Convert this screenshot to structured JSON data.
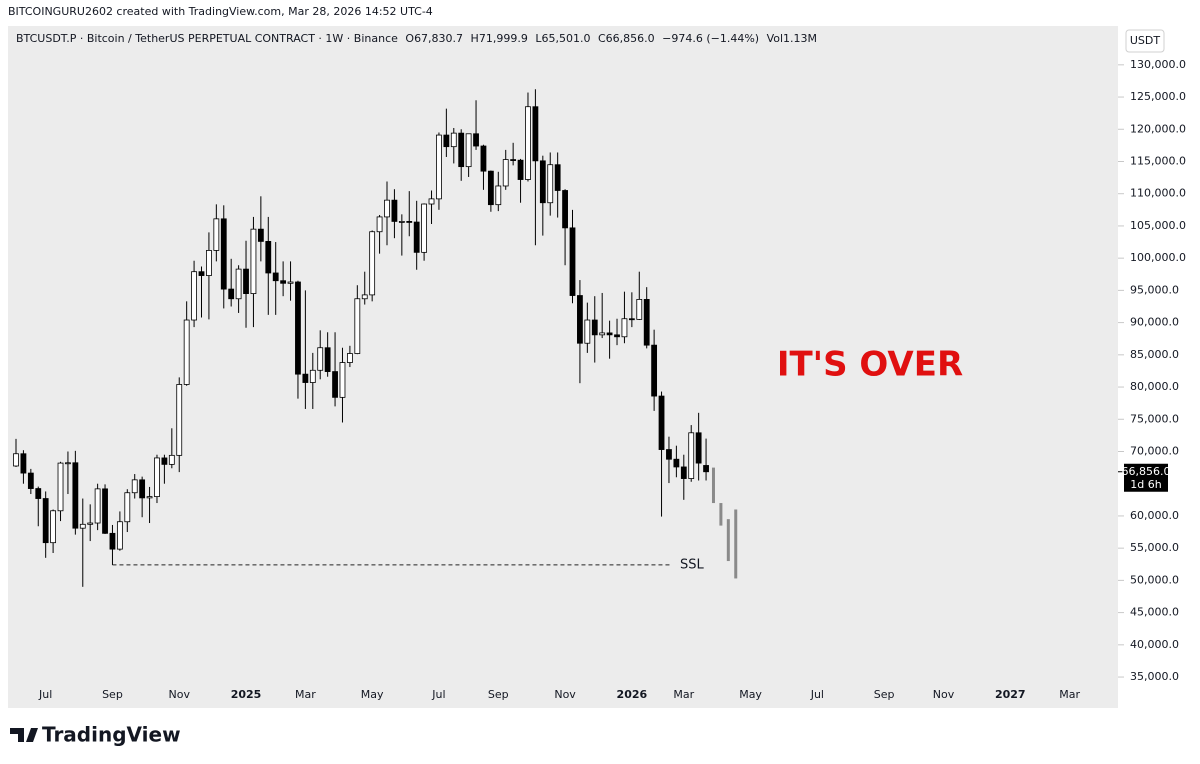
{
  "header": {
    "credit": "BITCOINGURU2602 created with TradingView.com, Mar 28, 2026 14:52 UTC-4",
    "symbol": "BTCUSDT.P · Bitcoin / TetherUS PERPETUAL CONTRACT · 1W · Binance",
    "ohlc": [
      {
        "key": "O",
        "value": "67,830.7"
      },
      {
        "key": "H",
        "value": "71,999.9"
      },
      {
        "key": "L",
        "value": "65,501.0"
      },
      {
        "key": "C",
        "value": "66,856.0"
      }
    ],
    "change": "−974.6 (−1.44%)",
    "volume": "Vol1.13M",
    "currency": "USDT"
  },
  "footer": {
    "logo": "TradingView"
  },
  "chart_data": {
    "type": "candlestick",
    "categories": [
      null,
      null,
      null,
      null,
      "Jul",
      null,
      null,
      null,
      null,
      null,
      null,
      null,
      null,
      "Sep",
      null,
      null,
      null,
      null,
      null,
      null,
      null,
      null,
      "Nov",
      null,
      null,
      null,
      null,
      null,
      null,
      null,
      null,
      "2025",
      null,
      null,
      null,
      null,
      null,
      null,
      null,
      "Mar",
      null,
      null,
      null,
      null,
      null,
      null,
      null,
      null,
      "May",
      null,
      null,
      null,
      null,
      null,
      null,
      null,
      null,
      "Jul",
      null,
      null,
      null,
      null,
      null,
      null,
      null,
      "Sep",
      null,
      null,
      null,
      null,
      null,
      null,
      null,
      null,
      "Nov",
      null,
      null,
      null,
      null,
      null,
      null,
      null,
      null,
      "2026",
      null,
      null,
      null,
      null,
      null,
      null,
      "Mar",
      null,
      null,
      null,
      null,
      null,
      null,
      null,
      null,
      "May",
      null,
      null,
      null,
      null,
      null,
      null,
      null,
      null,
      "Jul",
      null,
      null,
      null,
      null,
      null,
      null,
      null,
      null,
      "Sep",
      null,
      null,
      null,
      null,
      null,
      null,
      null,
      "Nov",
      null,
      null,
      null,
      null,
      null,
      null,
      null,
      null,
      "2027",
      null,
      null,
      null,
      null,
      null,
      null,
      null,
      "Mar"
    ],
    "open": [
      67750,
      69650,
      66650,
      64250,
      62700,
      55850,
      60800,
      68200,
      68250,
      58100,
      58700,
      58900,
      64200,
      57300,
      54850,
      59100,
      63600,
      65600,
      62800,
      63000,
      69000,
      68000,
      69400,
      80400,
      90400,
      97900,
      97300,
      101200,
      106100,
      95200,
      93700,
      98300,
      94500,
      104500,
      102600,
      97700,
      96500,
      96100,
      96300,
      82000,
      80700,
      82600,
      86100,
      82400,
      78400,
      83800,
      85200,
      93700,
      94300,
      104100,
      106400,
      109000,
      105700,
      105700,
      105600,
      100900,
      108400,
      109200,
      119100,
      117300,
      119400,
      114200,
      119300,
      117400,
      113500,
      108300,
      111200,
      115300,
      115200,
      112200,
      123500,
      115100,
      108600,
      114500,
      110500,
      104700,
      94200,
      86800,
      90400,
      88100,
      88400,
      88100,
      87800,
      90600,
      90500,
      93600,
      86500,
      78600,
      70300,
      68800,
      67600,
      65800,
      72900,
      67830.7,
      null,
      null,
      null,
      null,
      null,
      null,
      null,
      null,
      null,
      null,
      null,
      null,
      null,
      null,
      null,
      null,
      null,
      null,
      null,
      null,
      null,
      null,
      null,
      null,
      null,
      null,
      null,
      null,
      null,
      null,
      null,
      null,
      null,
      null,
      null,
      null,
      null,
      null,
      null,
      null,
      null,
      null,
      null,
      null,
      null,
      null,
      null,
      null,
      null
    ],
    "high": [
      71950,
      70200,
      67300,
      64550,
      63800,
      61000,
      68400,
      70000,
      70100,
      62700,
      61800,
      65000,
      64900,
      58600,
      60700,
      64150,
      66500,
      66100,
      64500,
      69500,
      69500,
      73600,
      81500,
      93300,
      99600,
      98700,
      104000,
      108350,
      108200,
      99900,
      98900,
      102700,
      106400,
      109600,
      106400,
      102500,
      99500,
      99500,
      96500,
      95000,
      85300,
      88800,
      88500,
      88500,
      86100,
      86400,
      95800,
      97900,
      104300,
      106700,
      111900,
      110700,
      106800,
      110400,
      108900,
      108500,
      110500,
      119500,
      123200,
      120200,
      120000,
      119300,
      124500,
      117600,
      113600,
      113400,
      116800,
      117900,
      115400,
      125700,
      126200,
      115900,
      116400,
      116400,
      110700,
      107500,
      96600,
      93100,
      94100,
      94600,
      90300,
      90600,
      94800,
      94700,
      97900,
      95500,
      88900,
      79300,
      72300,
      70900,
      69500,
      74100,
      76000,
      71999.9,
      null,
      null,
      null,
      null,
      null,
      null,
      null,
      null,
      null,
      null,
      null,
      null,
      null,
      null,
      null,
      null,
      null,
      null,
      null,
      null,
      null,
      null,
      null,
      null,
      null,
      null,
      null,
      null,
      null,
      null,
      null,
      null,
      null,
      null,
      null,
      null,
      null,
      null,
      null,
      null,
      null,
      null,
      null,
      null,
      null,
      null,
      null,
      null,
      null
    ],
    "low": [
      67600,
      65000,
      63400,
      58400,
      53500,
      54250,
      59200,
      63400,
      57100,
      49000,
      56100,
      57800,
      57200,
      52400,
      54600,
      57500,
      62700,
      59800,
      58900,
      62000,
      65000,
      67400,
      66800,
      80200,
      89300,
      90800,
      90500,
      99500,
      92200,
      92500,
      91500,
      89200,
      89300,
      99500,
      91200,
      91200,
      94100,
      93400,
      78200,
      76600,
      76600,
      81200,
      81600,
      77000,
      74500,
      83100,
      85100,
      92800,
      93300,
      100700,
      102000,
      103100,
      100400,
      103400,
      98200,
      99600,
      105300,
      107500,
      115700,
      114700,
      112000,
      112600,
      116800,
      110600,
      107200,
      107300,
      110600,
      114400,
      108600,
      111900,
      102000,
      103500,
      106600,
      106300,
      98900,
      93000,
      80600,
      85300,
      83800,
      87600,
      84400,
      86500,
      86800,
      89300,
      90400,
      86000,
      76300,
      59900,
      65100,
      66000,
      62500,
      65300,
      65500,
      65501,
      null,
      null,
      null,
      null,
      null,
      null,
      null,
      null,
      null,
      null,
      null,
      null,
      null,
      null,
      null,
      null,
      null,
      null,
      null,
      null,
      null,
      null,
      null,
      null,
      null,
      null,
      null,
      null,
      null,
      null,
      null,
      null,
      null,
      null,
      null,
      null,
      null,
      null,
      null,
      null,
      null,
      null,
      null,
      null,
      null,
      null,
      null,
      null,
      null
    ],
    "close": [
      69650,
      66650,
      64250,
      62700,
      55850,
      60800,
      68200,
      68250,
      58100,
      58700,
      58900,
      64200,
      57300,
      54850,
      59100,
      63600,
      65600,
      62800,
      63000,
      69000,
      68000,
      69400,
      80400,
      90400,
      97900,
      97300,
      101200,
      106100,
      95200,
      93700,
      98300,
      94500,
      104500,
      102600,
      97700,
      96500,
      96100,
      96300,
      82000,
      80700,
      82600,
      86100,
      82400,
      78400,
      83800,
      85200,
      93700,
      94300,
      104100,
      106400,
      109000,
      105700,
      105700,
      105600,
      100900,
      108400,
      109200,
      119100,
      117300,
      119400,
      114200,
      119300,
      117400,
      113500,
      108300,
      111200,
      115300,
      115200,
      112200,
      123500,
      115100,
      108600,
      114500,
      110500,
      104700,
      94200,
      86800,
      90400,
      88100,
      88400,
      88100,
      87800,
      90600,
      90500,
      93600,
      86500,
      78600,
      70300,
      68800,
      67600,
      65800,
      72900,
      68200,
      66856,
      null,
      null,
      null,
      null,
      null,
      null,
      null,
      null,
      null,
      null,
      null,
      null,
      null,
      null,
      null,
      null,
      null,
      null,
      null,
      null,
      null,
      null,
      null,
      null,
      null,
      null,
      null,
      null,
      null,
      null,
      null,
      null,
      null,
      null,
      null,
      null,
      null,
      null,
      null,
      null,
      null,
      null,
      null,
      null,
      null,
      null,
      null,
      null,
      null
    ],
    "projection_high": [
      null,
      null,
      null,
      null,
      null,
      null,
      null,
      null,
      null,
      null,
      null,
      null,
      null,
      null,
      null,
      null,
      null,
      null,
      null,
      null,
      null,
      null,
      null,
      null,
      null,
      null,
      null,
      null,
      null,
      null,
      null,
      null,
      null,
      null,
      null,
      null,
      null,
      null,
      null,
      null,
      null,
      null,
      null,
      null,
      null,
      null,
      null,
      null,
      null,
      null,
      null,
      null,
      null,
      null,
      null,
      null,
      null,
      null,
      null,
      null,
      null,
      null,
      null,
      null,
      null,
      null,
      null,
      null,
      null,
      null,
      null,
      null,
      null,
      null,
      null,
      null,
      null,
      null,
      null,
      null,
      null,
      null,
      null,
      null,
      null,
      null,
      null,
      null,
      null,
      null,
      null,
      null,
      null,
      null,
      67500,
      62000,
      59500,
      61000,
      null,
      null,
      null,
      null,
      null,
      null,
      null,
      null,
      null,
      null,
      null,
      null,
      null,
      null,
      null,
      null,
      null,
      null,
      null,
      null,
      null,
      null,
      null,
      null,
      null,
      null,
      null,
      null,
      null,
      null,
      null,
      null,
      null,
      null,
      null,
      null,
      null,
      null,
      null,
      null,
      null,
      null,
      null,
      null,
      null
    ],
    "projection_low": [
      null,
      null,
      null,
      null,
      null,
      null,
      null,
      null,
      null,
      null,
      null,
      null,
      null,
      null,
      null,
      null,
      null,
      null,
      null,
      null,
      null,
      null,
      null,
      null,
      null,
      null,
      null,
      null,
      null,
      null,
      null,
      null,
      null,
      null,
      null,
      null,
      null,
      null,
      null,
      null,
      null,
      null,
      null,
      null,
      null,
      null,
      null,
      null,
      null,
      null,
      null,
      null,
      null,
      null,
      null,
      null,
      null,
      null,
      null,
      null,
      null,
      null,
      null,
      null,
      null,
      null,
      null,
      null,
      null,
      null,
      null,
      null,
      null,
      null,
      null,
      null,
      null,
      null,
      null,
      null,
      null,
      null,
      null,
      null,
      null,
      null,
      null,
      null,
      null,
      null,
      null,
      null,
      null,
      null,
      62000,
      58500,
      53000,
      50300,
      null,
      null,
      null,
      null,
      null,
      null,
      null,
      null,
      null,
      null,
      null,
      null,
      null,
      null,
      null,
      null,
      null,
      null,
      null,
      null,
      null,
      null,
      null,
      null,
      null,
      null,
      null,
      null,
      null,
      null,
      null,
      null,
      null,
      null,
      null,
      null,
      null,
      null,
      null,
      null,
      null,
      null,
      null,
      null,
      null
    ],
    "up_color": "#ffffff",
    "down_color": "#000000",
    "wick_color": "#000000",
    "projection_color": "#8a8a8a",
    "ylim": [
      33300,
      132300
    ],
    "yticks": [
      {
        "value": 130000,
        "label": "130,000.0"
      },
      {
        "value": 125000,
        "label": "125,000.0"
      },
      {
        "value": 120000,
        "label": "120,000.0"
      },
      {
        "value": 115000,
        "label": "115,000.0"
      },
      {
        "value": 110000,
        "label": "110,000.0"
      },
      {
        "value": 105000,
        "label": "105,000.0"
      },
      {
        "value": 100000,
        "label": "100,000.0"
      },
      {
        "value": 95000,
        "label": "95,000.0"
      },
      {
        "value": 90000,
        "label": "90,000.0"
      },
      {
        "value": 85000,
        "label": "85,000.0"
      },
      {
        "value": 80000,
        "label": "80,000.0"
      },
      {
        "value": 75000,
        "label": "75,000.0"
      },
      {
        "value": 70000,
        "label": "70,000.0"
      },
      {
        "value": 60000,
        "label": "60,000.0"
      },
      {
        "value": 55000,
        "label": "55,000.0"
      },
      {
        "value": 50000,
        "label": "50,000.0"
      },
      {
        "value": 45000,
        "label": "45,000.0"
      },
      {
        "value": 40000,
        "label": "40,000.0"
      },
      {
        "value": 35000,
        "label": "35,000.0"
      }
    ],
    "grid": false,
    "last_price": {
      "value": 66856,
      "label": "66,856.0",
      "countdown": "1d 6h"
    },
    "level": {
      "value": 52400,
      "label": "SSL"
    },
    "annotation": {
      "text": "IT'S OVER",
      "color": "#e01010"
    }
  }
}
